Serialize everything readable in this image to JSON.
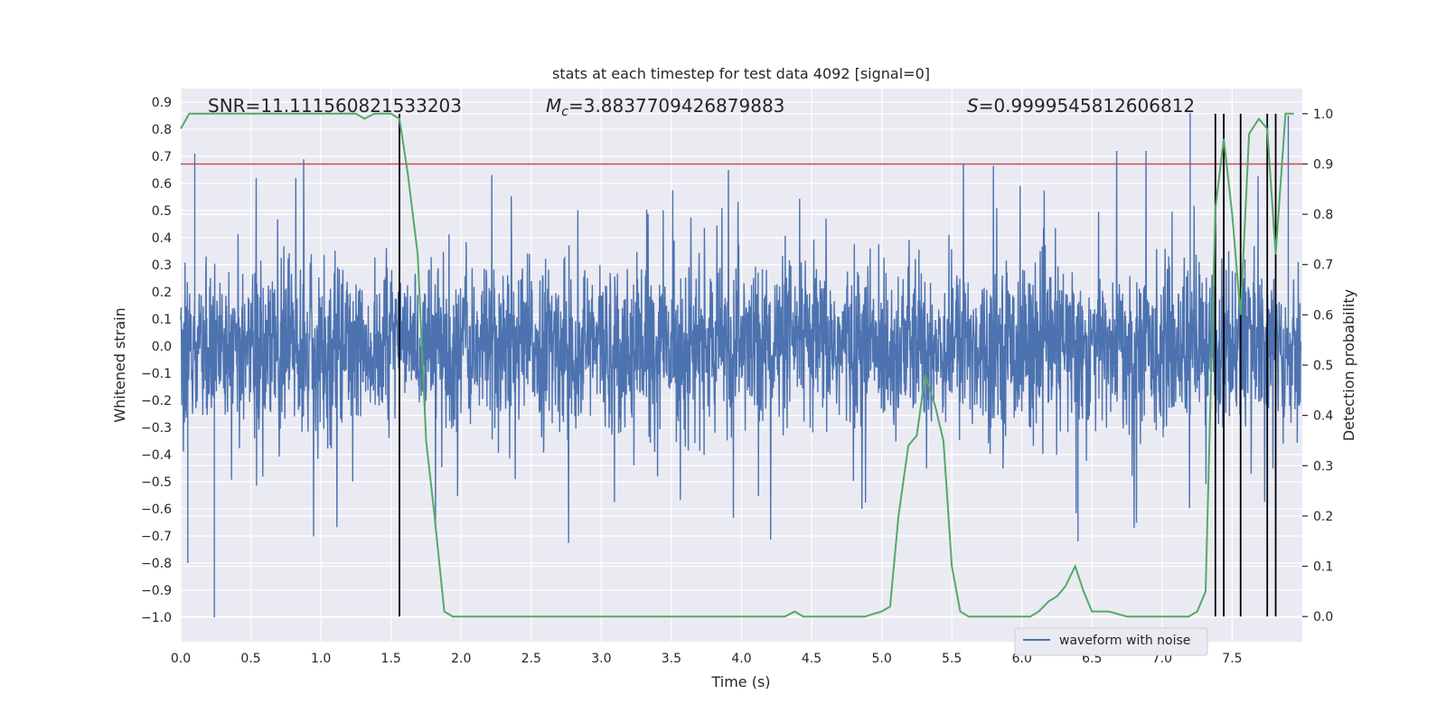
{
  "chart_data": {
    "type": "line",
    "title": "stats at each timestep for test data 4092 [signal=0]",
    "xlabel": "Time (s)",
    "ylabel_left": "Whitened strain",
    "ylabel_right": "Detection probability",
    "xlim": [
      0.0,
      8.0
    ],
    "ylim_left": [
      -1.09,
      0.95
    ],
    "ylim_right": [
      -0.05,
      1.05
    ],
    "x_ticks": [
      0.0,
      0.5,
      1.0,
      1.5,
      2.0,
      2.5,
      3.0,
      3.5,
      4.0,
      4.5,
      5.0,
      5.5,
      6.0,
      6.5,
      7.0,
      7.5
    ],
    "x_tick_labels": [
      "0.0",
      "0.5",
      "1.0",
      "1.5",
      "2.0",
      "2.5",
      "3.0",
      "3.5",
      "4.0",
      "4.5",
      "5.0",
      "5.5",
      "6.0",
      "6.5",
      "7.0",
      "7.5"
    ],
    "y_left_ticks": [
      0.9,
      0.8,
      0.7,
      0.6,
      0.5,
      0.4,
      0.3,
      0.2,
      0.1,
      0.0,
      -0.1,
      -0.2,
      -0.3,
      -0.4,
      -0.5,
      -0.6,
      -0.7,
      -0.8,
      -0.9,
      -1.0
    ],
    "y_left_tick_labels": [
      "0.9",
      "0.8",
      "0.7",
      "0.6",
      "0.5",
      "0.4",
      "0.3",
      "0.2",
      "0.1",
      "0.0",
      "−0.1",
      "−0.2",
      "−0.3",
      "−0.4",
      "−0.5",
      "−0.6",
      "−0.7",
      "−0.8",
      "−0.9",
      "−1.0"
    ],
    "y_right_ticks": [
      1.0,
      0.9,
      0.8,
      0.7,
      0.6,
      0.5,
      0.4,
      0.3,
      0.2,
      0.1,
      0.0
    ],
    "y_right_tick_labels": [
      "1.0",
      "0.9",
      "0.8",
      "0.7",
      "0.6",
      "0.5",
      "0.4",
      "0.3",
      "0.2",
      "0.1",
      "0.0"
    ],
    "grid": true,
    "legend": {
      "placement": "lower-right",
      "entries": [
        "waveform with noise"
      ]
    },
    "annotations": {
      "snr": "SNR=11.111560821533203",
      "mc_symbol": "M",
      "mc_sub": "c",
      "mc_value": "=3.8837709426879883",
      "s_symbol": "S",
      "s_value": "=0.9999545812606812"
    },
    "threshold_right": 0.9,
    "vlines_x": [
      1.56,
      7.38,
      7.44,
      7.56,
      7.75,
      7.81
    ],
    "series": [
      {
        "name": "waveform with noise",
        "color": "#4c72b0",
        "envelope": "noise samples, amplitude mostly within ±0.45 with spikes reaching about 0.72 and −1.0"
      },
      {
        "color": "#55a868",
        "axis": "right",
        "x": [
          0.0,
          0.06,
          0.12,
          0.19,
          0.25,
          0.31,
          0.38,
          0.44,
          0.5,
          0.56,
          0.62,
          0.69,
          0.75,
          0.81,
          0.88,
          0.94,
          1.0,
          1.06,
          1.12,
          1.19,
          1.25,
          1.31,
          1.38,
          1.44,
          1.5,
          1.56,
          1.62,
          1.69,
          1.75,
          1.81,
          1.88,
          1.94,
          2.0,
          2.25,
          2.5,
          2.75,
          3.0,
          3.25,
          3.5,
          3.75,
          4.0,
          4.12,
          4.19,
          4.25,
          4.31,
          4.38,
          4.44,
          4.5,
          4.62,
          4.75,
          4.88,
          5.0,
          5.06,
          5.12,
          5.19,
          5.25,
          5.31,
          5.38,
          5.44,
          5.5,
          5.56,
          5.62,
          5.75,
          5.88,
          6.0,
          6.06,
          6.12,
          6.19,
          6.25,
          6.31,
          6.38,
          6.44,
          6.5,
          6.56,
          6.62,
          6.75,
          6.88,
          7.0,
          7.12,
          7.19,
          7.25,
          7.31,
          7.38,
          7.44,
          7.5,
          7.56,
          7.62,
          7.69,
          7.75,
          7.81,
          7.88,
          7.94
        ],
        "y": [
          0.97,
          1.0,
          1.0,
          1.0,
          1.0,
          1.0,
          1.0,
          1.0,
          1.0,
          1.0,
          1.0,
          1.0,
          1.0,
          1.0,
          1.0,
          1.0,
          1.0,
          1.0,
          1.0,
          1.0,
          1.0,
          0.99,
          1.0,
          1.0,
          1.0,
          0.99,
          0.88,
          0.72,
          0.35,
          0.2,
          0.01,
          0.0,
          0.0,
          0.0,
          0.0,
          0.0,
          0.0,
          0.0,
          0.0,
          0.0,
          0.0,
          0.0,
          0.0,
          0.0,
          0.0,
          0.01,
          0.0,
          0.0,
          0.0,
          0.0,
          0.0,
          0.01,
          0.02,
          0.2,
          0.34,
          0.36,
          0.48,
          0.42,
          0.35,
          0.1,
          0.01,
          0.0,
          0.0,
          0.0,
          0.0,
          0.0,
          0.01,
          0.03,
          0.04,
          0.06,
          0.1,
          0.05,
          0.01,
          0.01,
          0.01,
          0.0,
          0.0,
          0.0,
          0.0,
          0.0,
          0.01,
          0.05,
          0.81,
          0.95,
          0.8,
          0.6,
          0.96,
          0.99,
          0.97,
          0.72,
          1.0,
          1.0
        ]
      }
    ]
  }
}
